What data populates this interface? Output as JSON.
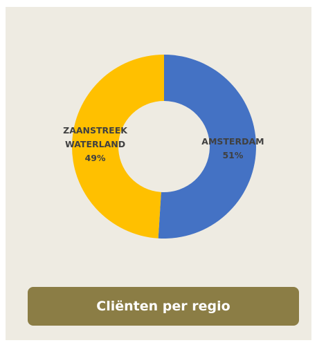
{
  "chart_data": {
    "type": "donut",
    "title": "Cliënten per regio",
    "categories": [
      "AMSTERDAM",
      "ZAANSTREEK WATERLAND"
    ],
    "values": [
      51,
      49
    ],
    "value_labels": [
      "51%",
      "49%"
    ],
    "colors": [
      "#4472c4",
      "#ffc000"
    ]
  }
}
